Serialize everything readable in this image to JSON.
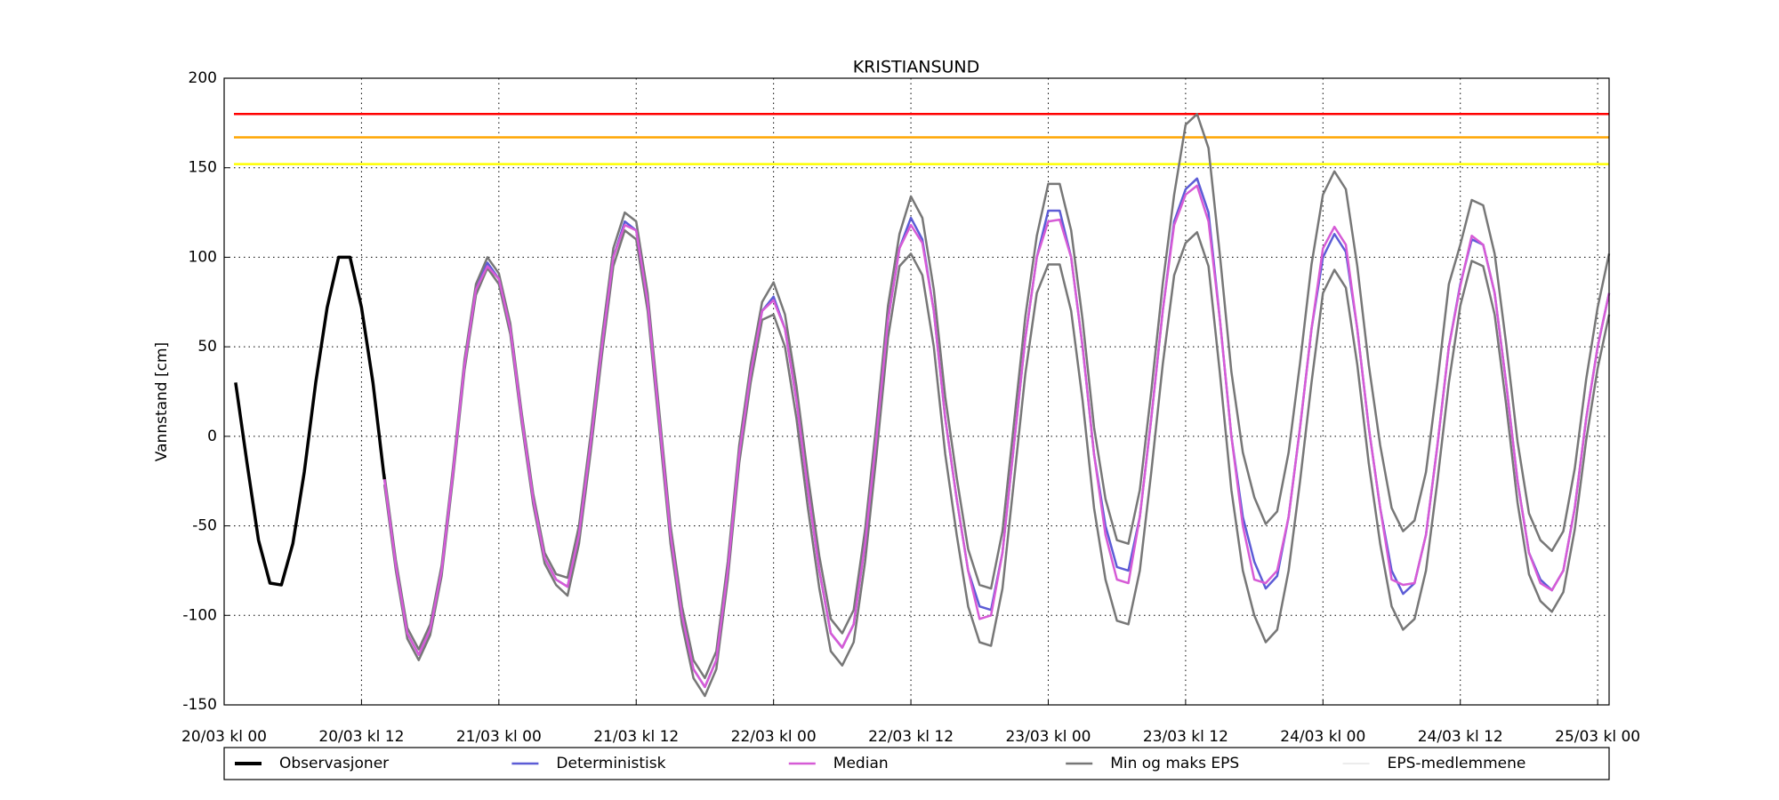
{
  "chart_data": {
    "type": "line",
    "title": "KRISTIANSUND",
    "ylabel": "Vannstand [cm]",
    "xlim": [
      0,
      121
    ],
    "ylim": [
      -150,
      200
    ],
    "xticks": [
      {
        "value": 0,
        "label": "20/03 kl 00"
      },
      {
        "value": 12,
        "label": "20/03 kl 12"
      },
      {
        "value": 24,
        "label": "21/03 kl 00"
      },
      {
        "value": 36,
        "label": "21/03 kl 12"
      },
      {
        "value": 48,
        "label": "22/03 kl 00"
      },
      {
        "value": 60,
        "label": "22/03 kl 12"
      },
      {
        "value": 72,
        "label": "23/03 kl 00"
      },
      {
        "value": 84,
        "label": "23/03 kl 12"
      },
      {
        "value": 96,
        "label": "24/03 kl 00"
      },
      {
        "value": 108,
        "label": "24/03 kl 12"
      },
      {
        "value": 120,
        "label": "25/03 kl 00"
      }
    ],
    "yticks": [
      -150,
      -100,
      -50,
      0,
      50,
      100,
      150,
      200
    ],
    "grid": true,
    "hlines": [
      {
        "value": 180,
        "color": "#ff0000"
      },
      {
        "value": 167,
        "color": "#ffa500"
      },
      {
        "value": 152,
        "color": "#ffff00"
      }
    ],
    "x": [
      14,
      15,
      16,
      17,
      18,
      19,
      20,
      21,
      22,
      23,
      24,
      25,
      26,
      27,
      28,
      29,
      30,
      31,
      32,
      33,
      34,
      35,
      36,
      37,
      38,
      39,
      40,
      41,
      42,
      43,
      44,
      45,
      46,
      47,
      48,
      49,
      50,
      51,
      52,
      53,
      54,
      55,
      56,
      57,
      58,
      59,
      60,
      61,
      62,
      63,
      64,
      65,
      66,
      67,
      68,
      69,
      70,
      71,
      72,
      73,
      74,
      75,
      76,
      77,
      78,
      79,
      80,
      81,
      82,
      83,
      84,
      85,
      86,
      87,
      88,
      89,
      90,
      91,
      92,
      93,
      94,
      95,
      96,
      97,
      98,
      99,
      100,
      101,
      102,
      103,
      104,
      105,
      106,
      107,
      108,
      109,
      110,
      111,
      112,
      113,
      114,
      115,
      116,
      117,
      118,
      119,
      120,
      121
    ],
    "series": [
      {
        "name": "Observasjoner",
        "color": "#000000",
        "x": [
          1,
          2,
          3,
          4,
          5,
          6,
          7,
          8,
          9,
          10,
          11,
          12,
          13,
          14
        ],
        "values": [
          30,
          -15,
          -58,
          -82,
          -83,
          -60,
          -20,
          30,
          72,
          100,
          100,
          72,
          30,
          -24
        ]
      },
      {
        "name": "Deterministisk",
        "color": "#5c5cd6",
        "values": [
          -24,
          -72,
          -110,
          -122,
          -108,
          -75,
          -20,
          40,
          82,
          97,
          88,
          60,
          10,
          -35,
          -68,
          -80,
          -84,
          -55,
          -5,
          50,
          100,
          120,
          115,
          75,
          10,
          -55,
          -100,
          -130,
          -140,
          -125,
          -75,
          -10,
          35,
          70,
          78,
          60,
          20,
          -30,
          -75,
          -110,
          -118,
          -105,
          -60,
          0,
          65,
          105,
          122,
          110,
          70,
          10,
          -35,
          -75,
          -95,
          -97,
          -65,
          -5,
          55,
          100,
          126,
          126,
          100,
          50,
          -10,
          -50,
          -73,
          -75,
          -45,
          10,
          70,
          120,
          138,
          144,
          125,
          65,
          0,
          -45,
          -70,
          -85,
          -78,
          -45,
          5,
          60,
          100,
          113,
          103,
          60,
          5,
          -40,
          -75,
          -88,
          -82,
          -55,
          -5,
          50,
          85,
          110,
          107,
          80,
          30,
          -25,
          -65,
          -80,
          -86,
          -75,
          -40,
          10,
          50,
          80
        ]
      },
      {
        "name": "Median",
        "color": "#d65bd6",
        "values": [
          -24,
          -72,
          -110,
          -122,
          -108,
          -75,
          -20,
          40,
          82,
          95,
          88,
          60,
          10,
          -35,
          -68,
          -80,
          -84,
          -55,
          -5,
          50,
          100,
          118,
          115,
          75,
          10,
          -55,
          -100,
          -130,
          -140,
          -125,
          -75,
          -10,
          35,
          70,
          76,
          60,
          20,
          -30,
          -75,
          -110,
          -118,
          -105,
          -60,
          0,
          65,
          105,
          118,
          108,
          70,
          10,
          -35,
          -75,
          -102,
          -100,
          -65,
          -5,
          55,
          100,
          120,
          121,
          100,
          50,
          -10,
          -55,
          -80,
          -82,
          -45,
          10,
          70,
          118,
          135,
          140,
          120,
          65,
          0,
          -50,
          -80,
          -82,
          -75,
          -45,
          5,
          60,
          105,
          117,
          107,
          60,
          5,
          -40,
          -80,
          -83,
          -82,
          -55,
          -5,
          50,
          84,
          112,
          107,
          80,
          30,
          -25,
          -65,
          -82,
          -86,
          -75,
          -40,
          10,
          50,
          80
        ]
      },
      {
        "name": "Min og maks EPS",
        "color": "#777777",
        "min": [
          -27,
          -75,
          -113,
          -125,
          -111,
          -78,
          -23,
          37,
          79,
          94,
          85,
          57,
          7,
          -38,
          -71,
          -83,
          -89,
          -60,
          -10,
          45,
          95,
          115,
          110,
          70,
          5,
          -60,
          -105,
          -135,
          -145,
          -130,
          -80,
          -15,
          30,
          65,
          68,
          50,
          10,
          -40,
          -85,
          -120,
          -128,
          -115,
          -70,
          -10,
          55,
          95,
          102,
          90,
          50,
          -10,
          -55,
          -95,
          -115,
          -117,
          -85,
          -25,
          35,
          80,
          96,
          96,
          70,
          20,
          -40,
          -80,
          -103,
          -105,
          -75,
          -20,
          40,
          90,
          108,
          114,
          95,
          35,
          -30,
          -75,
          -100,
          -115,
          -108,
          -75,
          -25,
          30,
          80,
          93,
          83,
          40,
          -15,
          -60,
          -95,
          -108,
          -102,
          -75,
          -25,
          30,
          73,
          98,
          95,
          68,
          18,
          -37,
          -77,
          -92,
          -98,
          -87,
          -52,
          -2,
          38,
          68
        ],
        "max": [
          -21,
          -69,
          -107,
          -119,
          -105,
          -72,
          -17,
          43,
          85,
          100,
          91,
          63,
          13,
          -32,
          -65,
          -77,
          -79,
          -50,
          0,
          55,
          105,
          125,
          120,
          80,
          15,
          -50,
          -95,
          -125,
          -135,
          -120,
          -70,
          -5,
          40,
          75,
          86,
          68,
          28,
          -22,
          -67,
          -102,
          -110,
          -97,
          -52,
          8,
          73,
          113,
          134,
          122,
          82,
          22,
          -23,
          -63,
          -83,
          -85,
          -53,
          7,
          67,
          112,
          141,
          141,
          115,
          65,
          5,
          -35,
          -58,
          -60,
          -30,
          25,
          85,
          135,
          174,
          180,
          161,
          101,
          36,
          -9,
          -34,
          -49,
          -42,
          -9,
          41,
          96,
          135,
          148,
          138,
          95,
          40,
          -5,
          -40,
          -53,
          -47,
          -20,
          30,
          85,
          107,
          132,
          129,
          102,
          52,
          -3,
          -43,
          -58,
          -64,
          -53,
          -18,
          32,
          72,
          102
        ]
      },
      {
        "name": "EPS-medlemmene",
        "color": "#d9d9d9"
      }
    ]
  }
}
